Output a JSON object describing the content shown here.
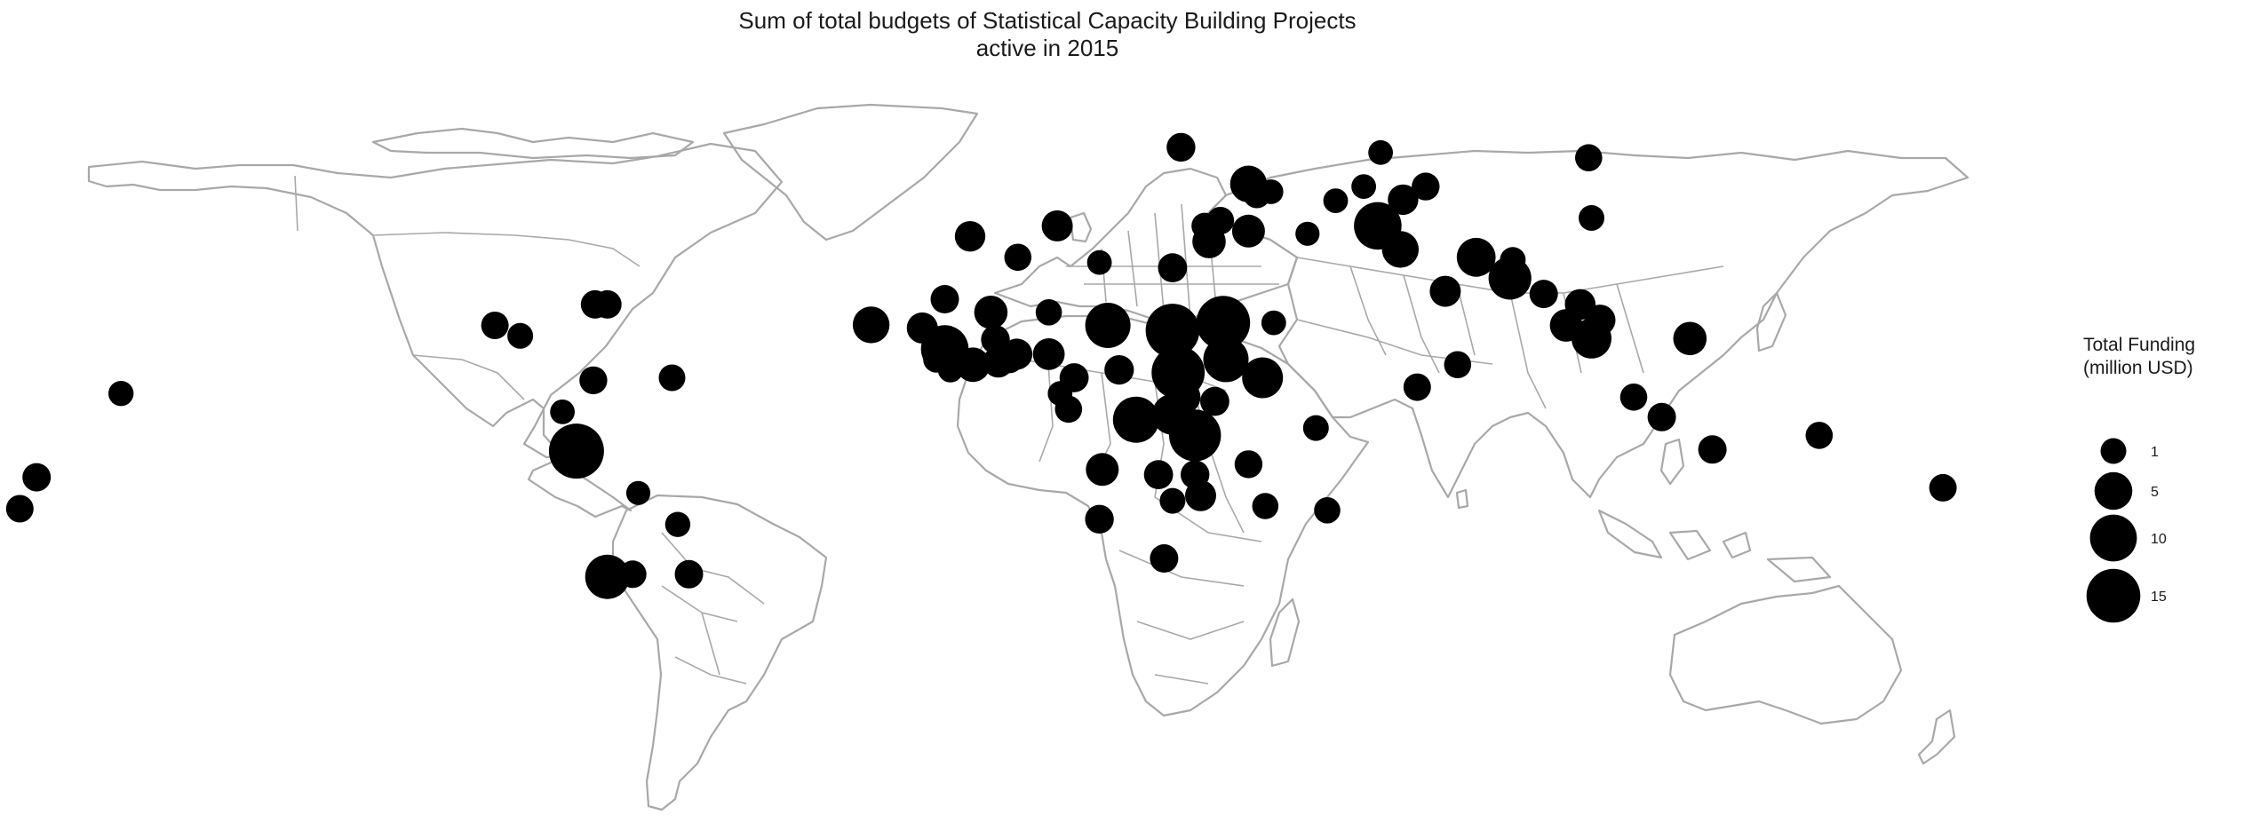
{
  "title_line1": "Sum of total budgets of Statistical Capacity Building Projects",
  "title_line2": "active in 2015",
  "legend": {
    "title_line1": "Total Funding",
    "title_line2": "(million USD)",
    "entries": [
      {
        "label": "1",
        "value": 1
      },
      {
        "label": "5",
        "value": 5
      },
      {
        "label": "10",
        "value": 10
      },
      {
        "label": "15",
        "value": 15
      }
    ]
  },
  "colors": {
    "bubble": "#000000",
    "land_outline": "#a8a8a8",
    "background": "#ffffff"
  },
  "map_data": {
    "projection": "equirectangular",
    "bubbles": [
      {
        "region": "Samoa",
        "lon": -172,
        "lat": -14,
        "value": 1.6
      },
      {
        "region": "Tonga",
        "lon": -175,
        "lat": -20,
        "value": 1.4
      },
      {
        "region": "Kiribati",
        "lon": -157,
        "lat": 2,
        "value": 0.9
      },
      {
        "region": "Guatemala",
        "lon": -90.5,
        "lat": 15,
        "value": 1.4
      },
      {
        "region": "Nicaragua",
        "lon": -86,
        "lat": 13,
        "value": 1.0
      },
      {
        "region": "Haiti",
        "lon": -72.7,
        "lat": 19,
        "value": 1.6
      },
      {
        "region": "Dominican Republic",
        "lon": -70.5,
        "lat": 19,
        "value": 1.6
      },
      {
        "region": "Colombia",
        "lon": -73,
        "lat": 4.5,
        "value": 1.5
      },
      {
        "region": "Guyana",
        "lon": -59,
        "lat": 5,
        "value": 1.2
      },
      {
        "region": "Ecuador",
        "lon": -78.5,
        "lat": -1.5,
        "value": 0.8
      },
      {
        "region": "Peru",
        "lon": -76,
        "lat": -9,
        "value": 16
      },
      {
        "region": "Bolivia",
        "lon": -65,
        "lat": -17,
        "value": 0.7
      },
      {
        "region": "Paraguay",
        "lon": -58,
        "lat": -23,
        "value": 0.9
      },
      {
        "region": "Chile",
        "lon": -70.5,
        "lat": -33,
        "value": 8.5
      },
      {
        "region": "Argentina",
        "lon": -66,
        "lat": -32.5,
        "value": 1.4
      },
      {
        "region": "Uruguay",
        "lon": -56,
        "lat": -32.5,
        "value": 1.6
      },
      {
        "region": "Cape Verde",
        "lon": -23.6,
        "lat": 15.1,
        "value": 4.5
      },
      {
        "region": "Morocco",
        "lon": -6,
        "lat": 32,
        "value": 2.2
      },
      {
        "region": "Algeria",
        "lon": 2.5,
        "lat": 28,
        "value": 1.3
      },
      {
        "region": "Tunisia",
        "lon": 9.5,
        "lat": 34,
        "value": 2.4
      },
      {
        "region": "Senegal",
        "lon": -14.5,
        "lat": 14.5,
        "value": 2.4
      },
      {
        "region": "Mauritania",
        "lon": -10.5,
        "lat": 20,
        "value": 1.6
      },
      {
        "region": "Mali",
        "lon": -2.3,
        "lat": 17.5,
        "value": 3.2
      },
      {
        "region": "Niger",
        "lon": 8,
        "lat": 17.5,
        "value": 1.1
      },
      {
        "region": "Burkina Faso",
        "lon": -1.5,
        "lat": 12.3,
        "value": 1.7
      },
      {
        "region": "Guinea",
        "lon": -10.5,
        "lat": 10.5,
        "value": 10.5
      },
      {
        "region": "Sierra Leone",
        "lon": -12,
        "lat": 8.5,
        "value": 1.1
      },
      {
        "region": "Liberia",
        "lon": -9.5,
        "lat": 6.5,
        "value": 0.9
      },
      {
        "region": "Cote d'Ivoire",
        "lon": -5.5,
        "lat": 7.5,
        "value": 3.6
      },
      {
        "region": "Ghana",
        "lon": -1,
        "lat": 8,
        "value": 2.4
      },
      {
        "region": "Togo",
        "lon": 1,
        "lat": 8.5,
        "value": 1.4
      },
      {
        "region": "Benin",
        "lon": 2.3,
        "lat": 9.5,
        "value": 2.4
      },
      {
        "region": "Nigeria",
        "lon": 8,
        "lat": 9.5,
        "value": 2.6
      },
      {
        "region": "Cameroon",
        "lon": 12.5,
        "lat": 5,
        "value": 1.8
      },
      {
        "region": "Equatorial Guinea",
        "lon": 10,
        "lat": 2,
        "value": 0.8
      },
      {
        "region": "Gabon",
        "lon": 11.5,
        "lat": -1,
        "value": 1.3
      },
      {
        "region": "Chad",
        "lon": 18.5,
        "lat": 15,
        "value": 9
      },
      {
        "region": "Central African Republic",
        "lon": 20.5,
        "lat": 6.5,
        "value": 1.9
      },
      {
        "region": "DR Congo",
        "lon": 23.5,
        "lat": -3,
        "value": 9.5
      },
      {
        "region": "Libya",
        "lon": 17,
        "lat": 27,
        "value": 0.8
      },
      {
        "region": "Egypt",
        "lon": 30,
        "lat": 26,
        "value": 1.8
      },
      {
        "region": "Sudan",
        "lon": 30,
        "lat": 14,
        "value": 15
      },
      {
        "region": "South Sudan",
        "lon": 31,
        "lat": 6,
        "value": 14.5
      },
      {
        "region": "Ethiopia",
        "lon": 39.5,
        "lat": 8.5,
        "value": 9
      },
      {
        "region": "Somalia",
        "lon": 46,
        "lat": 5,
        "value": 6.5
      },
      {
        "region": "Eritrea",
        "lon": 39,
        "lat": 15.5,
        "value": 15
      },
      {
        "region": "Uganda",
        "lon": 32,
        "lat": 1.3,
        "value": 3.2
      },
      {
        "region": "Kenya",
        "lon": 37.5,
        "lat": 0.5,
        "value": 1.8
      },
      {
        "region": "Rwanda",
        "lon": 30,
        "lat": -2,
        "value": 6.5
      },
      {
        "region": "Tanzania",
        "lon": 34,
        "lat": -6,
        "value": 13.5
      },
      {
        "region": "Angola",
        "lon": 17.5,
        "lat": -12.5,
        "value": 3
      },
      {
        "region": "Zambia",
        "lon": 27.5,
        "lat": -13.5,
        "value": 1.8
      },
      {
        "region": "Malawi",
        "lon": 34,
        "lat": -13.5,
        "value": 1.7
      },
      {
        "region": "Zimbabwe",
        "lon": 30,
        "lat": -18.5,
        "value": 1.0
      },
      {
        "region": "Mozambique",
        "lon": 35,
        "lat": -17.5,
        "value": 2.4
      },
      {
        "region": "Namibia",
        "lon": 17,
        "lat": -22,
        "value": 1.7
      },
      {
        "region": "Lesotho",
        "lon": 28.5,
        "lat": -29.5,
        "value": 1.6
      },
      {
        "region": "Comoros",
        "lon": 43.5,
        "lat": -11.5,
        "value": 1.5
      },
      {
        "region": "Madagascar",
        "lon": 46.5,
        "lat": -19.5,
        "value": 1.1
      },
      {
        "region": "Mauritius",
        "lon": 57.5,
        "lat": -20.3,
        "value": 1.1
      },
      {
        "region": "Seychelles",
        "lon": 55.5,
        "lat": -4.6,
        "value": 1.0
      },
      {
        "region": "Ukraine",
        "lon": 31.5,
        "lat": 49,
        "value": 1.7
      },
      {
        "region": "Georgia",
        "lon": 43.5,
        "lat": 42,
        "value": 4.5
      },
      {
        "region": "Armenia",
        "lon": 45,
        "lat": 40,
        "value": 1.4
      },
      {
        "region": "Azerbaijan",
        "lon": 47.5,
        "lat": 40.5,
        "value": 0.8
      },
      {
        "region": "Lebanon",
        "lon": 35.7,
        "lat": 34,
        "value": 1.1
      },
      {
        "region": "Syria",
        "lon": 38.5,
        "lat": 35,
        "value": 1.4
      },
      {
        "region": "Iraq",
        "lon": 43.5,
        "lat": 33,
        "value": 3
      },
      {
        "region": "Jordan",
        "lon": 36.5,
        "lat": 31,
        "value": 3.2
      },
      {
        "region": "Yemen",
        "lon": 48,
        "lat": 15.5,
        "value": 0.8
      },
      {
        "region": "Kazakhstan",
        "lon": 67,
        "lat": 48,
        "value": 0.8
      },
      {
        "region": "Uzbekistan",
        "lon": 64,
        "lat": 41.5,
        "value": 0.8
      },
      {
        "region": "Turkmenistan",
        "lon": 59,
        "lat": 38.8,
        "value": 0.8
      },
      {
        "region": "Tajikistan",
        "lon": 71,
        "lat": 39,
        "value": 2.2
      },
      {
        "region": "Kyrgyzstan",
        "lon": 75,
        "lat": 41.5,
        "value": 1.5
      },
      {
        "region": "Afghanistan",
        "lon": 66.5,
        "lat": 34,
        "value": 10.5
      },
      {
        "region": "Pakistan",
        "lon": 70.5,
        "lat": 29.5,
        "value": 4.5
      },
      {
        "region": "Nepal",
        "lon": 84,
        "lat": 28,
        "value": 5.5
      },
      {
        "region": "India",
        "lon": 78.5,
        "lat": 21.5,
        "value": 2.4
      },
      {
        "region": "Bhutan",
        "lon": 90.5,
        "lat": 27.5,
        "value": 1.0
      },
      {
        "region": "Bangladesh",
        "lon": 90,
        "lat": 24,
        "value": 7.5
      },
      {
        "region": "Sri Lanka",
        "lon": 80.7,
        "lat": 7.5,
        "value": 1.3
      },
      {
        "region": "Maldives",
        "lon": 73.5,
        "lat": 3.2,
        "value": 1.4
      },
      {
        "region": "Myanmar",
        "lon": 96,
        "lat": 21,
        "value": 1.6
      },
      {
        "region": "Laos",
        "lon": 102.5,
        "lat": 19,
        "value": 2.3
      },
      {
        "region": "Thailand",
        "lon": 100,
        "lat": 15,
        "value": 2.9
      },
      {
        "region": "Vietnam",
        "lon": 106,
        "lat": 16,
        "value": 2.4
      },
      {
        "region": "Cambodia",
        "lon": 104.5,
        "lat": 12.5,
        "value": 6
      },
      {
        "region": "Philippines",
        "lon": 122,
        "lat": 12.5,
        "value": 3.2
      },
      {
        "region": "Malaysia",
        "lon": 112,
        "lat": 1.3,
        "value": 1.3
      },
      {
        "region": "Indonesia",
        "lon": 117,
        "lat": -2.5,
        "value": 1.6
      },
      {
        "region": "Timor-Leste",
        "lon": 126,
        "lat": -8.7,
        "value": 1.6
      },
      {
        "region": "Papua New Guinea",
        "lon": 145,
        "lat": -6,
        "value": 1.3
      },
      {
        "region": "Vanuatu",
        "lon": 167,
        "lat": -16,
        "value": 1.4
      },
      {
        "region": "Mongolia",
        "lon": 104,
        "lat": 47,
        "value": 1.3
      },
      {
        "region": "China",
        "lon": 104.5,
        "lat": 35.5,
        "value": 1.0
      },
      {
        "region": "Iran",
        "lon": 54,
        "lat": 32.5,
        "value": 0.7
      }
    ]
  }
}
